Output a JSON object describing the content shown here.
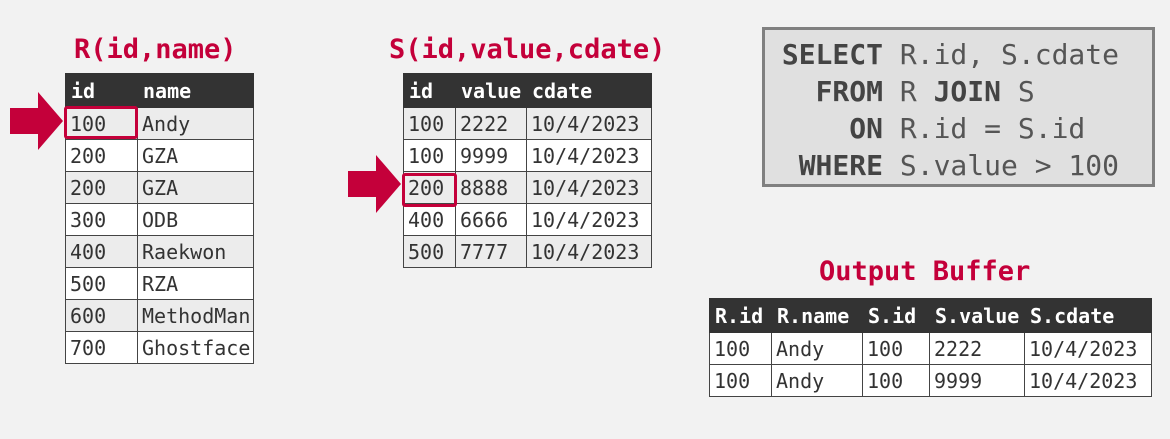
{
  "accent_color": "#c4003a",
  "table_r": {
    "title": "R(id,name)",
    "columns": [
      "id",
      "name"
    ],
    "rows": [
      [
        "100",
        "Andy"
      ],
      [
        "200",
        "GZA"
      ],
      [
        "200",
        "GZA"
      ],
      [
        "300",
        "ODB"
      ],
      [
        "400",
        "Raekwon"
      ],
      [
        "500",
        "RZA"
      ],
      [
        "600",
        "MethodMan"
      ],
      [
        "700",
        "Ghostface"
      ]
    ],
    "cursor_row": 0
  },
  "table_s": {
    "title": "S(id,value,cdate)",
    "columns": [
      "id",
      "value",
      "cdate"
    ],
    "rows": [
      [
        "100",
        "2222",
        "10/4/2023"
      ],
      [
        "100",
        "9999",
        "10/4/2023"
      ],
      [
        "200",
        "8888",
        "10/4/2023"
      ],
      [
        "400",
        "6666",
        "10/4/2023"
      ],
      [
        "500",
        "7777",
        "10/4/2023"
      ]
    ],
    "cursor_row": 2
  },
  "query": {
    "lines": [
      {
        "kw": "SELECT",
        "pre": "R.id, S.cdate",
        "kw2": "",
        "post": ""
      },
      {
        "kw": "FROM",
        "pre": "R ",
        "kw2": "JOIN",
        "post": " S"
      },
      {
        "kw": "ON",
        "pre": "R.id = S.id",
        "kw2": "",
        "post": ""
      },
      {
        "kw": "WHERE",
        "pre": "S.value > 100",
        "kw2": "",
        "post": ""
      }
    ]
  },
  "output": {
    "title": "Output Buffer",
    "columns": [
      "R.id",
      "R.name",
      "S.id",
      "S.value",
      "S.cdate"
    ],
    "rows": [
      [
        "100",
        "Andy",
        "100",
        "2222",
        "10/4/2023"
      ],
      [
        "100",
        "Andy",
        "100",
        "9999",
        "10/4/2023"
      ]
    ]
  }
}
